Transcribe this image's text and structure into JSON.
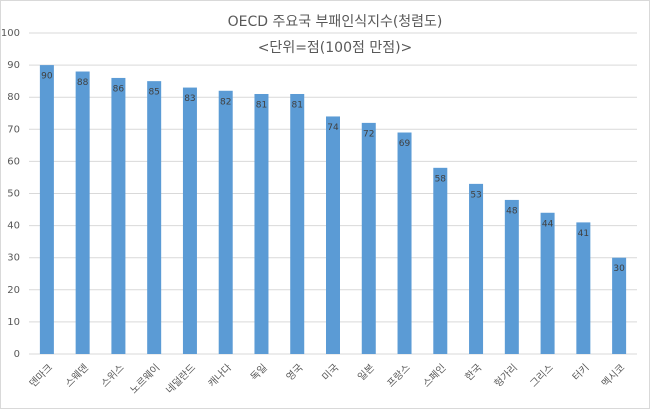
{
  "chart_data": {
    "type": "bar",
    "title": "OECD 주요국 부패인식지수(청렴도)",
    "subtitle": "<단위=점(100점 만점)>",
    "categories": [
      "덴마크",
      "스웨덴",
      "스위스",
      "노르웨이",
      "네덜란드",
      "캐나다",
      "독일",
      "영국",
      "미국",
      "일본",
      "프랑스",
      "스페인",
      "한국",
      "헝가리",
      "그리스",
      "터키",
      "멕시코"
    ],
    "values": [
      90,
      88,
      86,
      85,
      83,
      82,
      81,
      81,
      74,
      72,
      69,
      58,
      53,
      48,
      44,
      41,
      30
    ],
    "color": "#5b9bd5",
    "ylim": [
      0,
      100
    ],
    "yticks": [
      0,
      10,
      20,
      30,
      40,
      50,
      60,
      70,
      80,
      90,
      100
    ],
    "grid": true
  }
}
